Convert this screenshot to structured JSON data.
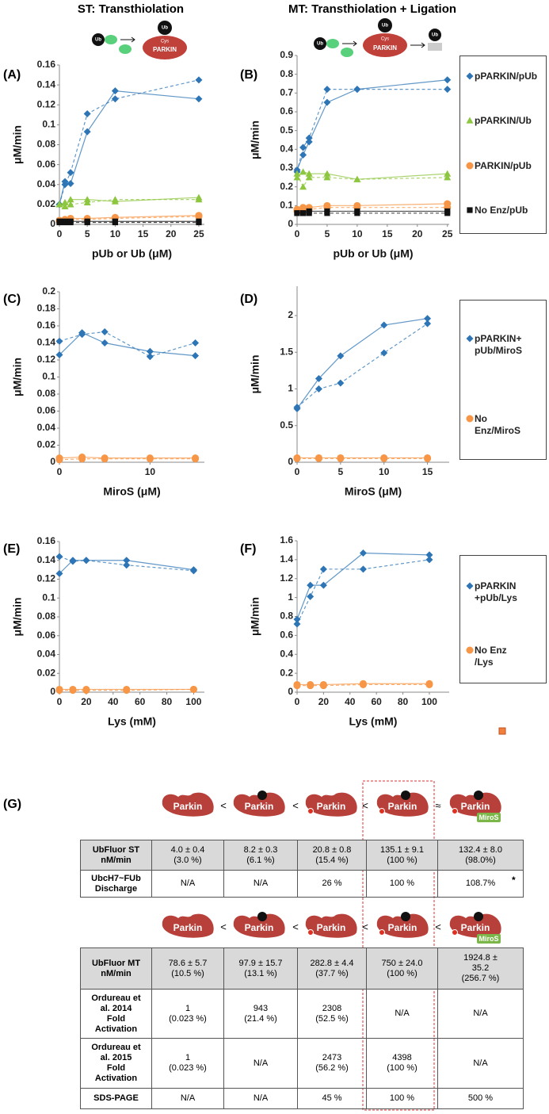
{
  "headers": [
    "ST: Transthiolation",
    "MT: Transthiolation + Ligation"
  ],
  "schematic": {
    "ub": "Ub",
    "cys": "Cys",
    "parkin": "PARKIN"
  },
  "chart_data": [
    {
      "type": "line",
      "panel": "(A)",
      "x_label": "pUb or Ub (μM)",
      "y_label": "μM/min",
      "x": [
        0,
        1,
        2,
        5,
        10,
        25
      ],
      "xlim": [
        0,
        26
      ],
      "xticks": [
        0,
        5,
        10,
        15,
        20,
        25
      ],
      "ylim": [
        0,
        0.16
      ],
      "yticks": [
        0,
        0.02,
        0.04,
        0.06,
        0.08,
        0.1,
        0.12,
        0.14,
        0.16
      ],
      "line_styles": [
        "solid",
        "dashed"
      ],
      "series": [
        {
          "color": "#2e75b6",
          "marker": "diamond",
          "replicates": [
            [
              0.02,
              0.043,
              0.041,
              0.093,
              0.134,
              0.126
            ],
            [
              0.02,
              0.04,
              0.052,
              0.111,
              0.126,
              0.145
            ]
          ]
        },
        {
          "color": "#8dc63f",
          "marker": "triangle",
          "replicates": [
            [
              0.02,
              0.018,
              0.025,
              0.025,
              0.023,
              0.027
            ],
            [
              0.02,
              0.022,
              0.02,
              0.022,
              0.025,
              0.025
            ]
          ]
        },
        {
          "color": "#f79646",
          "marker": "circle",
          "replicates": [
            [
              0.004,
              0.005,
              0.006,
              0.006,
              0.007,
              0.009
            ],
            [
              0.003,
              0.004,
              0.005,
              0.005,
              0.006,
              0.008
            ]
          ]
        },
        {
          "color": "#111111",
          "marker": "square",
          "replicates": [
            [
              0.003,
              0.003,
              0.003,
              0.003,
              0.003,
              0.003
            ],
            [
              0.002,
              0.002,
              0.002,
              0.002,
              0.002,
              0.002
            ]
          ]
        }
      ]
    },
    {
      "type": "line",
      "panel": "(B)",
      "x_label": "pUb or Ub (μM)",
      "y_label": "μM/min",
      "x": [
        0,
        1,
        2,
        5,
        10,
        25
      ],
      "xlim": [
        0,
        25.3
      ],
      "xticks": [
        0,
        5,
        10,
        15,
        20,
        25
      ],
      "ylim": [
        0,
        0.9
      ],
      "yticks": [
        0,
        0.1,
        0.2,
        0.3,
        0.4,
        0.5,
        0.6,
        0.7,
        0.8,
        0.9
      ],
      "line_styles": [
        "solid",
        "dashed"
      ],
      "legend": "right",
      "series": [
        {
          "name": "pPARKIN/pUb",
          "color": "#2e75b6",
          "marker": "diamond",
          "replicates": [
            [
              0.29,
              0.37,
              0.44,
              0.65,
              0.72,
              0.77
            ],
            [
              0.28,
              0.41,
              0.46,
              0.72,
              0.72,
              0.72
            ]
          ]
        },
        {
          "name": "pPARKIN/Ub",
          "color": "#8dc63f",
          "marker": "triangle",
          "replicates": [
            [
              0.25,
              0.28,
              0.27,
              0.27,
              0.24,
              0.27
            ],
            [
              0.27,
              0.2,
              0.25,
              0.25,
              0.24,
              0.25
            ]
          ]
        },
        {
          "name": "PARKIN/pUb",
          "color": "#f79646",
          "marker": "circle",
          "replicates": [
            [
              0.08,
              0.09,
              0.09,
              0.1,
              0.1,
              0.11
            ],
            [
              0.07,
              0.08,
              0.08,
              0.09,
              0.09,
              0.09
            ]
          ]
        },
        {
          "name": "No Enz/pUb",
          "color": "#111111",
          "marker": "square",
          "replicates": [
            [
              0.06,
              0.06,
              0.07,
              0.07,
              0.07,
              0.07
            ],
            [
              0.06,
              0.06,
              0.06,
              0.06,
              0.06,
              0.06
            ]
          ]
        }
      ]
    },
    {
      "type": "line",
      "panel": "(C)",
      "x_label": "MiroS (μM)",
      "y_label": "μM/min",
      "x": [
        0,
        2.5,
        5,
        10,
        15
      ],
      "xlim": [
        0,
        16
      ],
      "xticks": [
        0,
        10
      ],
      "ylim": [
        0,
        0.2
      ],
      "yticks": [
        0,
        0.02,
        0.04,
        0.06,
        0.08,
        0.1,
        0.12,
        0.14,
        0.16,
        0.18,
        0.2
      ],
      "line_styles": [
        "solid",
        "dashed"
      ],
      "series": [
        {
          "color": "#2e75b6",
          "marker": "diamond",
          "replicates": [
            [
              0.126,
              0.152,
              0.14,
              0.13,
              0.125
            ],
            [
              0.142,
              0.15,
              0.153,
              0.124,
              0.14
            ]
          ]
        },
        {
          "color": "#f79646",
          "marker": "circle",
          "replicates": [
            [
              0.005,
              0.006,
              0.005,
              0.005,
              0.005
            ],
            [
              0.003,
              0.004,
              0.004,
              0.004,
              0.004
            ]
          ]
        }
      ]
    },
    {
      "type": "line",
      "panel": "(D)",
      "x_label": "MiroS (μM)",
      "y_label": "μM/min",
      "x": [
        0,
        2.5,
        5,
        10,
        15
      ],
      "xlim": [
        0,
        17.5
      ],
      "xticks": [
        0,
        5,
        10,
        15
      ],
      "ylim": [
        0,
        2.4
      ],
      "yticks": [
        0,
        0.5,
        1,
        1.5,
        2
      ],
      "line_styles": [
        "solid",
        "dashed"
      ],
      "legend": "right",
      "series": [
        {
          "name": "pPARKIN+\npUb/MiroS",
          "color": "#2e75b6",
          "marker": "diamond",
          "replicates": [
            [
              0.73,
              1.14,
              1.45,
              1.87,
              1.96
            ],
            [
              0.75,
              1.0,
              1.08,
              1.49,
              1.89
            ]
          ]
        },
        {
          "name": "No\nEnz/MiroS",
          "color": "#f79646",
          "marker": "circle",
          "replicates": [
            [
              0.06,
              0.06,
              0.06,
              0.06,
              0.06
            ],
            [
              0.05,
              0.05,
              0.05,
              0.05,
              0.05
            ]
          ]
        }
      ]
    },
    {
      "type": "line",
      "panel": "(E)",
      "x_label": "Lys (mM)",
      "y_label": "μM/min",
      "x": [
        0,
        10,
        20,
        50,
        100
      ],
      "xlim": [
        0,
        108
      ],
      "xticks": [
        0,
        20,
        40,
        60,
        80,
        100
      ],
      "ylim": [
        0,
        0.16
      ],
      "yticks": [
        0,
        0.02,
        0.04,
        0.06,
        0.08,
        0.1,
        0.12,
        0.14,
        0.16
      ],
      "line_styles": [
        "solid",
        "dashed"
      ],
      "series": [
        {
          "color": "#2e75b6",
          "marker": "diamond",
          "replicates": [
            [
              0.126,
              0.14,
              0.14,
              0.14,
              0.13
            ],
            [
              0.144,
              0.139,
              0.14,
              0.135,
              0.129
            ]
          ]
        },
        {
          "color": "#f79646",
          "marker": "circle",
          "replicates": [
            [
              0.003,
              0.003,
              0.003,
              0.003,
              0.003
            ],
            [
              0.002,
              0.002,
              0.002,
              0.002,
              0.003
            ]
          ]
        }
      ]
    },
    {
      "type": "line",
      "panel": "(F)",
      "x_label": "Lys (mM)",
      "y_label": "μM/min",
      "x": [
        0,
        10,
        20,
        50,
        100
      ],
      "xlim": [
        0,
        115
      ],
      "xticks": [
        0,
        20,
        40,
        60,
        80,
        100
      ],
      "ylim": [
        0,
        1.6
      ],
      "yticks": [
        0,
        0.2,
        0.4,
        0.6,
        0.8,
        1,
        1.2,
        1.4,
        1.6
      ],
      "line_styles": [
        "solid",
        "dashed"
      ],
      "legend": "right",
      "series": [
        {
          "name": "pPARKIN\n+pUb/Lys",
          "color": "#2e75b6",
          "marker": "diamond",
          "replicates": [
            [
              0.77,
              1.13,
              1.13,
              1.47,
              1.45
            ],
            [
              0.72,
              1.01,
              1.3,
              1.3,
              1.4
            ]
          ]
        },
        {
          "name": "No Enz\n/Lys",
          "color": "#f79646",
          "marker": "circle",
          "replicates": [
            [
              0.08,
              0.08,
              0.08,
              0.09,
              0.09
            ],
            [
              0.07,
              0.07,
              0.07,
              0.08,
              0.08
            ]
          ]
        }
      ]
    }
  ],
  "panel_g": {
    "label": "(G)",
    "parkin": "Parkin",
    "miros": "MiroS",
    "symbols_st": [
      "<",
      "<",
      "<",
      "≈"
    ],
    "symbols_mt": [
      "<",
      "<",
      "<",
      "<"
    ],
    "table_st": {
      "rows": [
        [
          "UbFluor ST\nnM/min",
          "4.0 ± 0.4\n(3.0 %)",
          "8.2 ± 0.3\n(6.1 %)",
          "20.8 ± 0.8\n(15.4 %)",
          "135.1 ±  9.1\n(100 %)",
          "132.4 ± 8.0\n(98.0%)"
        ],
        [
          "UbcH7~FUb\nDischarge",
          "N/A",
          "N/A",
          "26 %",
          "100 %",
          "108.7%"
        ]
      ]
    },
    "note": "*",
    "table_mt": {
      "rows": [
        [
          "UbFluor MT\nnM/min",
          "78.6 ± 5.7\n(10.5 %)",
          "97.9 ± 15.7\n(13.1 %)",
          "282.8 ± 4.4\n(37.7 %)",
          "750 ± 24.0\n(100 %)",
          "1924.8 ±\n35.2\n(256.7 %)"
        ],
        [
          "Ordureau et\nal. 2014\nFold\nActivation",
          "1\n(0.023 %)",
          "943\n(21.4 %)",
          "2308\n(52.5 %)",
          "N/A",
          "N/A"
        ],
        [
          "Ordureau et\nal. 2015\nFold\nActivation",
          "1\n(0.023 %)",
          "N/A",
          "2473\n(56.2 %)",
          "4398\n(100 %)",
          "N/A"
        ],
        [
          "SDS-PAGE",
          "N/A",
          "N/A",
          "45 %",
          "100 %",
          "500 %"
        ]
      ]
    }
  }
}
